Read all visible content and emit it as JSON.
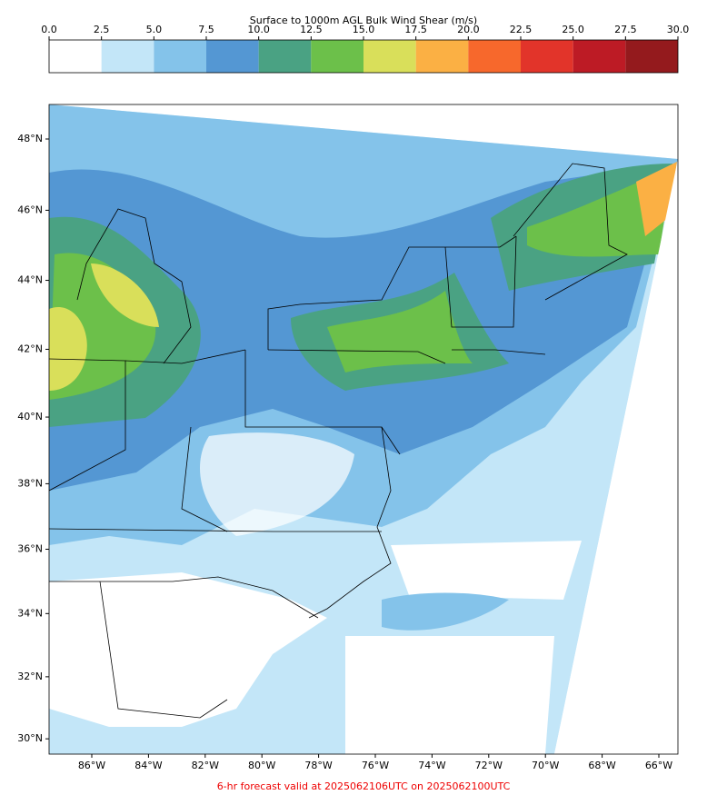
{
  "colorbar": {
    "title": "Surface to 1000m AGL Bulk Wind Shear (m/s)",
    "ticks": [
      {
        "value": 0,
        "label": "0.0"
      },
      {
        "value": 2.5,
        "label": "2.5"
      },
      {
        "value": 5,
        "label": "5.0"
      },
      {
        "value": 7.5,
        "label": "7.5"
      },
      {
        "value": 10,
        "label": "10.0"
      },
      {
        "value": 12.5,
        "label": "12.5"
      },
      {
        "value": 15,
        "label": "15.0"
      },
      {
        "value": 17.5,
        "label": "17.5"
      },
      {
        "value": 20,
        "label": "20.0"
      },
      {
        "value": 22.5,
        "label": "22.5"
      },
      {
        "value": 25,
        "label": "25.0"
      },
      {
        "value": 27.5,
        "label": "27.5"
      },
      {
        "value": 30,
        "label": "30.0"
      }
    ],
    "colors": [
      "#ffffff",
      "#c3e6f8",
      "#84c3ea",
      "#5497d3",
      "#4aa283",
      "#6cc04a",
      "#d9df5a",
      "#fbb044",
      "#f7682c",
      "#e2342a",
      "#bd1b25",
      "#941a1d"
    ]
  },
  "map": {
    "lat_ticks": [
      {
        "value": 48,
        "label": "48°N"
      },
      {
        "value": 46,
        "label": "46°N"
      },
      {
        "value": 44,
        "label": "44°N"
      },
      {
        "value": 42,
        "label": "42°N"
      },
      {
        "value": 40,
        "label": "40°N"
      },
      {
        "value": 38,
        "label": "38°N"
      },
      {
        "value": 36,
        "label": "36°N"
      },
      {
        "value": 34,
        "label": "34°N"
      },
      {
        "value": 32,
        "label": "32°N"
      },
      {
        "value": 30,
        "label": "30°N"
      }
    ],
    "lon_ticks": [
      {
        "value": -86,
        "label": "86°W"
      },
      {
        "value": -84,
        "label": "84°W"
      },
      {
        "value": -82,
        "label": "82°W"
      },
      {
        "value": -80,
        "label": "80°W"
      },
      {
        "value": -78,
        "label": "78°W"
      },
      {
        "value": -76,
        "label": "76°W"
      },
      {
        "value": -74,
        "label": "74°W"
      },
      {
        "value": -72,
        "label": "72°W"
      },
      {
        "value": -70,
        "label": "70°W"
      },
      {
        "value": -68,
        "label": "68°W"
      },
      {
        "value": -66,
        "label": "66°W"
      }
    ]
  },
  "footer": "6-hr forecast valid at 2025062106UTC on 2025062100UTC"
}
